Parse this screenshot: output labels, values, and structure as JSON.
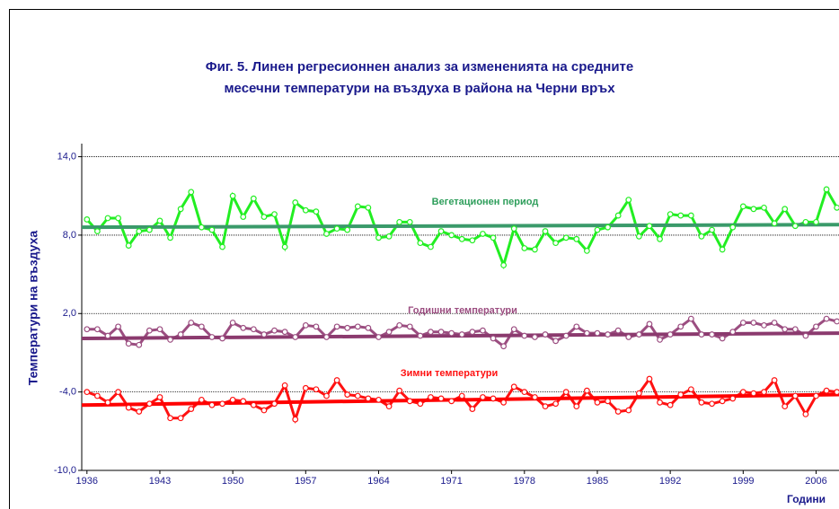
{
  "chart_data": {
    "type": "line",
    "title": [
      "Фиг. 5. Линен регресионнен анализ за измененията на средните",
      "месечни температури на въздуха в района на Черни връх"
    ],
    "y_label": "Температури на въздуха",
    "x_label": "Години",
    "x": [
      1936,
      1937,
      1938,
      1939,
      1940,
      1941,
      1942,
      1943,
      1944,
      1945,
      1946,
      1947,
      1948,
      1949,
      1950,
      1951,
      1952,
      1953,
      1954,
      1955,
      1956,
      1957,
      1958,
      1959,
      1960,
      1961,
      1962,
      1963,
      1964,
      1965,
      1966,
      1967,
      1968,
      1969,
      1970,
      1971,
      1972,
      1973,
      1974,
      1975,
      1976,
      1977,
      1978,
      1979,
      1980,
      1981,
      1982,
      1983,
      1984,
      1985,
      1986,
      1987,
      1988,
      1989,
      1990,
      1991,
      1992,
      1993,
      1994,
      1995,
      1996,
      1997,
      1998,
      1999,
      2000,
      2001,
      2002,
      2003,
      2004,
      2005,
      2006,
      2007,
      2008
    ],
    "xlim": [
      1935.5,
      2008.2
    ],
    "xticks": [
      1936,
      1943,
      1950,
      1957,
      1964,
      1971,
      1978,
      1985,
      1992,
      1999,
      2006
    ],
    "ylim": [
      -10,
      15
    ],
    "yticks": [
      {
        "value": -10,
        "label": "-10,0"
      },
      {
        "value": -4,
        "label": "-4,0"
      },
      {
        "value": 2,
        "label": "2,0"
      },
      {
        "value": 8,
        "label": "8,0"
      },
      {
        "value": 14,
        "label": "14,0"
      }
    ],
    "grid": true,
    "series": [
      {
        "name": "Вегетационен период",
        "color": "#22ee22",
        "trend_color": "#3a9a6a",
        "label_color": "#2e9e5b",
        "trend": [
          8.6,
          8.8
        ],
        "values": [
          9.2,
          8.3,
          9.3,
          9.3,
          7.2,
          8.3,
          8.4,
          9.1,
          7.8,
          10.0,
          11.3,
          8.6,
          8.4,
          7.1,
          11.0,
          9.4,
          10.8,
          9.4,
          9.6,
          7.1,
          10.5,
          9.9,
          9.8,
          8.1,
          8.5,
          8.4,
          10.2,
          10.1,
          7.8,
          7.9,
          9.0,
          9.0,
          7.4,
          7.1,
          8.3,
          8.0,
          7.7,
          7.6,
          8.1,
          7.8,
          5.7,
          8.5,
          7.0,
          6.9,
          8.3,
          7.4,
          7.8,
          7.7,
          6.8,
          8.4,
          8.6,
          9.5,
          10.7,
          7.9,
          8.7,
          7.7,
          9.6,
          9.5,
          9.5,
          7.9,
          8.4,
          6.9,
          8.6,
          10.2,
          10.0,
          10.1,
          8.9,
          10.0,
          8.7,
          9.0,
          9.0,
          11.5,
          10.1
        ]
      },
      {
        "name": "Годишни температури",
        "color": "#9b4d80",
        "trend_color": "#8b3a6e",
        "label_color": "#9b4d80",
        "trend": [
          0.1,
          0.5
        ],
        "values": [
          0.8,
          0.8,
          0.3,
          1.0,
          -0.3,
          -0.4,
          0.7,
          0.8,
          0.0,
          0.4,
          1.3,
          1.0,
          0.2,
          0.1,
          1.3,
          0.9,
          0.8,
          0.4,
          0.7,
          0.6,
          0.2,
          1.1,
          1.0,
          0.2,
          1.0,
          0.9,
          1.0,
          0.9,
          0.2,
          0.6,
          1.1,
          1.0,
          0.3,
          0.6,
          0.6,
          0.5,
          0.4,
          0.6,
          0.7,
          0.1,
          -0.5,
          0.8,
          0.3,
          0.2,
          0.4,
          -0.1,
          0.3,
          1.0,
          0.5,
          0.5,
          0.4,
          0.7,
          0.2,
          0.4,
          1.2,
          0.0,
          0.4,
          1.0,
          1.6,
          0.4,
          0.4,
          0.1,
          0.6,
          1.3,
          1.3,
          1.1,
          1.3,
          0.8,
          0.8,
          0.3,
          1.0,
          1.6,
          1.4
        ]
      },
      {
        "name": "Зимни температури",
        "color": "#ff1111",
        "trend_color": "#ff0000",
        "label_color": "#ff1111",
        "trend": [
          -5.0,
          -4.2
        ],
        "values": [
          -4.0,
          -4.3,
          -4.8,
          -4.0,
          -5.2,
          -5.5,
          -4.9,
          -4.4,
          -6.0,
          -6.0,
          -5.3,
          -4.6,
          -5.0,
          -4.9,
          -4.6,
          -4.7,
          -5.0,
          -5.4,
          -4.9,
          -3.5,
          -6.1,
          -3.7,
          -3.8,
          -4.3,
          -3.1,
          -4.2,
          -4.3,
          -4.5,
          -4.6,
          -5.1,
          -3.9,
          -4.7,
          -4.9,
          -4.4,
          -4.5,
          -4.7,
          -4.3,
          -5.3,
          -4.4,
          -4.5,
          -4.8,
          -3.6,
          -4.0,
          -4.4,
          -5.1,
          -4.9,
          -4.0,
          -5.1,
          -3.9,
          -4.8,
          -4.7,
          -5.5,
          -5.4,
          -4.1,
          -3.0,
          -4.8,
          -5.0,
          -4.2,
          -3.8,
          -4.8,
          -4.9,
          -4.7,
          -4.5,
          -4.0,
          -4.1,
          -4.0,
          -3.1,
          -5.1,
          -4.3,
          -5.7,
          -4.3,
          -3.9,
          -4.0
        ]
      }
    ]
  }
}
